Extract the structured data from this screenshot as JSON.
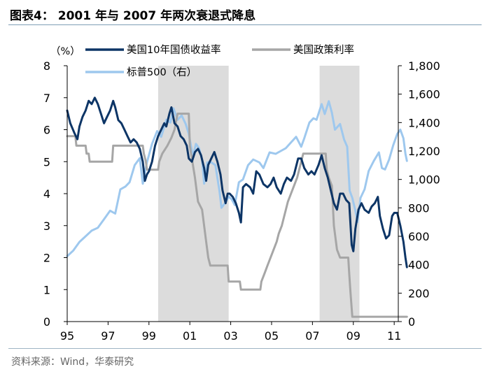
{
  "title": "图表4：  2001 年与 2007 年两次衰退式降息",
  "source": "资料来源：Wind，华泰研究",
  "colors": {
    "treasury": "#0d3566",
    "policy": "#a6a6a6",
    "sp500": "#9ec8ee",
    "recession": "#dcdcdc"
  },
  "chart_data": {
    "type": "line",
    "left_unit_label": "（%）",
    "x_ticks": [
      {
        "year": 1995,
        "label": "95"
      },
      {
        "year": 1997,
        "label": "97"
      },
      {
        "year": 1999,
        "label": "99"
      },
      {
        "year": 2001,
        "label": "01"
      },
      {
        "year": 2003,
        "label": "03"
      },
      {
        "year": 2005,
        "label": "05"
      },
      {
        "year": 2007,
        "label": "07"
      },
      {
        "year": 2009,
        "label": "09"
      },
      {
        "year": 2011,
        "label": "11"
      }
    ],
    "xlim": [
      1995,
      2011.2
    ],
    "ylim_left": [
      0,
      8
    ],
    "ylim_right": [
      0,
      1800
    ],
    "y_ticks_left": [
      "0",
      "1",
      "2",
      "3",
      "4",
      "5",
      "6",
      "7",
      "8"
    ],
    "y_ticks_right": [
      "0",
      "200",
      "400",
      "600",
      "800",
      "1,000",
      "1,200",
      "1,400",
      "1,600",
      "1,800"
    ],
    "recession_shading": [
      [
        1999.45,
        2002.9
      ],
      [
        2007.35,
        2009.3
      ]
    ],
    "series": [
      {
        "name": "美国10年国债收益率",
        "axis": "left",
        "points": [
          [
            1995.0,
            6.6
          ],
          [
            1995.15,
            6.2
          ],
          [
            1995.35,
            5.9
          ],
          [
            1995.5,
            5.7
          ],
          [
            1995.6,
            6.1
          ],
          [
            1995.75,
            6.4
          ],
          [
            1995.9,
            6.6
          ],
          [
            1996.05,
            6.9
          ],
          [
            1996.2,
            6.8
          ],
          [
            1996.35,
            7.0
          ],
          [
            1996.5,
            6.8
          ],
          [
            1996.65,
            6.5
          ],
          [
            1996.8,
            6.2
          ],
          [
            1996.95,
            6.4
          ],
          [
            1997.1,
            6.6
          ],
          [
            1997.25,
            6.9
          ],
          [
            1997.35,
            6.7
          ],
          [
            1997.5,
            6.3
          ],
          [
            1997.65,
            6.2
          ],
          [
            1997.8,
            6.0
          ],
          [
            1997.95,
            5.8
          ],
          [
            1998.1,
            5.6
          ],
          [
            1998.25,
            5.7
          ],
          [
            1998.4,
            5.6
          ],
          [
            1998.55,
            5.4
          ],
          [
            1998.7,
            5.0
          ],
          [
            1998.8,
            4.4
          ],
          [
            1998.9,
            4.6
          ],
          [
            1999.0,
            4.7
          ],
          [
            1999.15,
            5.0
          ],
          [
            1999.3,
            5.5
          ],
          [
            1999.45,
            5.8
          ],
          [
            1999.6,
            6.0
          ],
          [
            1999.75,
            6.2
          ],
          [
            1999.85,
            6.1
          ],
          [
            2000.0,
            6.5
          ],
          [
            2000.1,
            6.7
          ],
          [
            2000.25,
            6.2
          ],
          [
            2000.4,
            6.1
          ],
          [
            2000.55,
            5.8
          ],
          [
            2000.7,
            5.7
          ],
          [
            2000.85,
            5.5
          ],
          [
            2000.95,
            5.1
          ],
          [
            2001.1,
            5.0
          ],
          [
            2001.25,
            5.3
          ],
          [
            2001.4,
            5.4
          ],
          [
            2001.55,
            5.2
          ],
          [
            2001.7,
            4.8
          ],
          [
            2001.8,
            4.4
          ],
          [
            2001.9,
            4.9
          ],
          [
            2002.05,
            5.1
          ],
          [
            2002.2,
            5.3
          ],
          [
            2002.35,
            5.0
          ],
          [
            2002.5,
            4.6
          ],
          [
            2002.6,
            4.1
          ],
          [
            2002.75,
            3.7
          ],
          [
            2002.85,
            4.0
          ],
          [
            2002.95,
            4.0
          ],
          [
            2003.1,
            3.9
          ],
          [
            2003.25,
            3.7
          ],
          [
            2003.4,
            3.4
          ],
          [
            2003.5,
            3.1
          ],
          [
            2003.6,
            4.2
          ],
          [
            2003.75,
            4.3
          ],
          [
            2003.95,
            4.2
          ],
          [
            2004.1,
            4.0
          ],
          [
            2004.25,
            4.7
          ],
          [
            2004.4,
            4.6
          ],
          [
            2004.6,
            4.3
          ],
          [
            2004.8,
            4.2
          ],
          [
            2004.95,
            4.3
          ],
          [
            2005.1,
            4.5
          ],
          [
            2005.25,
            4.2
          ],
          [
            2005.45,
            4.0
          ],
          [
            2005.6,
            4.3
          ],
          [
            2005.75,
            4.5
          ],
          [
            2005.95,
            4.4
          ],
          [
            2006.1,
            4.6
          ],
          [
            2006.3,
            5.1
          ],
          [
            2006.45,
            5.1
          ],
          [
            2006.6,
            4.8
          ],
          [
            2006.8,
            4.6
          ],
          [
            2006.95,
            4.7
          ],
          [
            2007.1,
            4.6
          ],
          [
            2007.3,
            4.9
          ],
          [
            2007.45,
            5.2
          ],
          [
            2007.6,
            4.8
          ],
          [
            2007.75,
            4.5
          ],
          [
            2007.9,
            4.1
          ],
          [
            2008.05,
            3.7
          ],
          [
            2008.2,
            3.5
          ],
          [
            2008.35,
            4.0
          ],
          [
            2008.5,
            4.0
          ],
          [
            2008.65,
            3.8
          ],
          [
            2008.8,
            3.7
          ],
          [
            2008.92,
            2.4
          ],
          [
            2009.0,
            2.2
          ],
          [
            2009.1,
            2.9
          ],
          [
            2009.25,
            3.5
          ],
          [
            2009.4,
            3.7
          ],
          [
            2009.55,
            3.5
          ],
          [
            2009.75,
            3.4
          ],
          [
            2009.9,
            3.6
          ],
          [
            2010.05,
            3.7
          ],
          [
            2010.2,
            3.9
          ],
          [
            2010.3,
            3.3
          ],
          [
            2010.45,
            2.9
          ],
          [
            2010.6,
            2.6
          ],
          [
            2010.75,
            2.7
          ],
          [
            2010.9,
            3.3
          ],
          [
            2011.0,
            3.4
          ],
          [
            2011.15,
            3.4
          ],
          [
            2011.3,
            3.0
          ],
          [
            2011.45,
            2.5
          ],
          [
            2011.55,
            2.0
          ],
          [
            2011.62,
            1.7
          ]
        ]
      },
      {
        "name": "美国政策利率",
        "axis": "left",
        "points": [
          [
            1995.0,
            5.8
          ],
          [
            1995.4,
            5.8
          ],
          [
            1995.45,
            5.5
          ],
          [
            1995.9,
            5.5
          ],
          [
            1995.95,
            5.25
          ],
          [
            1996.05,
            5.25
          ],
          [
            1996.1,
            5.0
          ],
          [
            1997.2,
            5.0
          ],
          [
            1997.25,
            5.5
          ],
          [
            1998.7,
            5.5
          ],
          [
            1998.75,
            5.25
          ],
          [
            1998.85,
            5.0
          ],
          [
            1998.9,
            4.75
          ],
          [
            1999.45,
            4.75
          ],
          [
            1999.5,
            5.0
          ],
          [
            1999.65,
            5.25
          ],
          [
            1999.9,
            5.5
          ],
          [
            2000.1,
            5.75
          ],
          [
            2000.25,
            6.0
          ],
          [
            2000.4,
            6.5
          ],
          [
            2000.95,
            6.5
          ],
          [
            2001.0,
            5.5
          ],
          [
            2001.25,
            4.5
          ],
          [
            2001.4,
            3.75
          ],
          [
            2001.6,
            3.5
          ],
          [
            2001.7,
            3.0
          ],
          [
            2001.8,
            2.5
          ],
          [
            2001.9,
            2.0
          ],
          [
            2002.0,
            1.75
          ],
          [
            2002.85,
            1.75
          ],
          [
            2002.9,
            1.25
          ],
          [
            2003.45,
            1.25
          ],
          [
            2003.5,
            1.0
          ],
          [
            2004.45,
            1.0
          ],
          [
            2004.5,
            1.25
          ],
          [
            2004.65,
            1.5
          ],
          [
            2004.8,
            1.75
          ],
          [
            2004.95,
            2.0
          ],
          [
            2005.1,
            2.25
          ],
          [
            2005.25,
            2.5
          ],
          [
            2005.35,
            2.75
          ],
          [
            2005.5,
            3.0
          ],
          [
            2005.6,
            3.25
          ],
          [
            2005.7,
            3.5
          ],
          [
            2005.8,
            3.75
          ],
          [
            2005.95,
            4.0
          ],
          [
            2006.1,
            4.25
          ],
          [
            2006.25,
            4.5
          ],
          [
            2006.35,
            4.75
          ],
          [
            2006.45,
            5.0
          ],
          [
            2006.55,
            5.25
          ],
          [
            2007.65,
            5.25
          ],
          [
            2007.7,
            4.75
          ],
          [
            2007.8,
            4.5
          ],
          [
            2007.95,
            4.25
          ],
          [
            2008.05,
            3.0
          ],
          [
            2008.2,
            2.25
          ],
          [
            2008.35,
            2.0
          ],
          [
            2008.75,
            2.0
          ],
          [
            2008.8,
            1.5
          ],
          [
            2008.85,
            1.0
          ],
          [
            2008.95,
            0.15
          ],
          [
            2011.62,
            0.15
          ]
        ]
      },
      {
        "name": "标普500（右）",
        "axis": "right",
        "points": [
          [
            1995.0,
            460
          ],
          [
            1995.3,
            500
          ],
          [
            1995.6,
            560
          ],
          [
            1995.9,
            600
          ],
          [
            1996.2,
            640
          ],
          [
            1996.5,
            660
          ],
          [
            1996.8,
            720
          ],
          [
            1997.1,
            780
          ],
          [
            1997.35,
            760
          ],
          [
            1997.6,
            930
          ],
          [
            1997.85,
            950
          ],
          [
            1998.05,
            980
          ],
          [
            1998.3,
            1100
          ],
          [
            1998.55,
            1150
          ],
          [
            1998.7,
            970
          ],
          [
            1998.9,
            1120
          ],
          [
            1999.15,
            1250
          ],
          [
            1999.4,
            1340
          ],
          [
            1999.6,
            1300
          ],
          [
            1999.85,
            1420
          ],
          [
            2000.05,
            1400
          ],
          [
            2000.2,
            1500
          ],
          [
            2000.4,
            1420
          ],
          [
            2000.6,
            1450
          ],
          [
            2000.8,
            1390
          ],
          [
            2000.95,
            1320
          ],
          [
            2001.15,
            1160
          ],
          [
            2001.3,
            1250
          ],
          [
            2001.45,
            1220
          ],
          [
            2001.6,
            1140
          ],
          [
            2001.7,
            970
          ],
          [
            2001.85,
            1120
          ],
          [
            2002.05,
            1120
          ],
          [
            2002.25,
            1100
          ],
          [
            2002.45,
            920
          ],
          [
            2002.55,
            800
          ],
          [
            2002.75,
            840
          ],
          [
            2002.9,
            880
          ],
          [
            2003.05,
            860
          ],
          [
            2003.2,
            820
          ],
          [
            2003.4,
            980
          ],
          [
            2003.6,
            1000
          ],
          [
            2003.85,
            1100
          ],
          [
            2004.1,
            1140
          ],
          [
            2004.4,
            1120
          ],
          [
            2004.6,
            1080
          ],
          [
            2004.9,
            1190
          ],
          [
            2005.2,
            1180
          ],
          [
            2005.45,
            1200
          ],
          [
            2005.7,
            1220
          ],
          [
            2005.95,
            1260
          ],
          [
            2006.2,
            1300
          ],
          [
            2006.45,
            1230
          ],
          [
            2006.6,
            1290
          ],
          [
            2006.85,
            1400
          ],
          [
            2007.05,
            1430
          ],
          [
            2007.2,
            1420
          ],
          [
            2007.45,
            1530
          ],
          [
            2007.6,
            1460
          ],
          [
            2007.8,
            1550
          ],
          [
            2007.95,
            1470
          ],
          [
            2008.1,
            1350
          ],
          [
            2008.35,
            1390
          ],
          [
            2008.55,
            1280
          ],
          [
            2008.7,
            1230
          ],
          [
            2008.82,
            920
          ],
          [
            2008.95,
            870
          ],
          [
            2009.1,
            780
          ],
          [
            2009.2,
            700
          ],
          [
            2009.35,
            870
          ],
          [
            2009.55,
            930
          ],
          [
            2009.75,
            1060
          ],
          [
            2010.0,
            1130
          ],
          [
            2010.25,
            1190
          ],
          [
            2010.4,
            1080
          ],
          [
            2010.55,
            1070
          ],
          [
            2010.75,
            1140
          ],
          [
            2010.95,
            1240
          ],
          [
            2011.15,
            1320
          ],
          [
            2011.3,
            1350
          ],
          [
            2011.45,
            1290
          ],
          [
            2011.55,
            1180
          ],
          [
            2011.62,
            1130
          ]
        ]
      }
    ]
  }
}
